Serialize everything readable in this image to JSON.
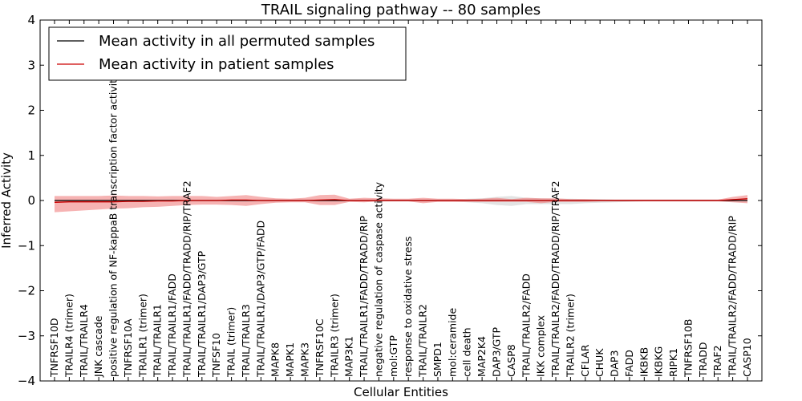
{
  "chart_data": {
    "type": "line",
    "title": "TRAIL signaling pathway -- 80 samples",
    "xlabel": "Cellular Entities",
    "ylabel": "Inferred Activity",
    "ylim": [
      -4,
      4
    ],
    "yticks": [
      "4",
      "3",
      "2",
      "1",
      "0",
      "−1",
      "−2",
      "−3",
      "−4"
    ],
    "legend_location": "top-left",
    "categories": [
      "TNFRSF10D",
      "TRAILR4 (trimer)",
      "TRAIL/TRAILR4",
      "JNK cascade",
      "positive regulation of NF-kappaB transcription factor activity",
      "TNFRSF10A",
      "TRAILR1 (trimer)",
      "TRAIL/TRAILR1",
      "TRAIL/TRAILR1/FADD",
      "TRAIL/TRAILR1/FADD/TRADD/RIP/TRAF2",
      "TRAIL/TRAILR1/DAP3/GTP",
      "TNFSF10",
      "TRAIL (trimer)",
      "TRAIL/TRAILR3",
      "TRAIL/TRAILR1/DAP3/GTP/FADD",
      "MAPK8",
      "MAPK1",
      "MAPK3",
      "TNFRSF10C",
      "TRAILR3 (trimer)",
      "MAP3K1",
      "TRAIL/TRAILR1/FADD/TRADD/RIP",
      "negative regulation of caspase activity",
      "mol:GTP",
      "response to oxidative stress",
      "TRAIL/TRAILR2",
      "SMPD1",
      "mol:ceramide",
      "cell death",
      "MAP2K4",
      "DAP3/GTP",
      "CASP8",
      "TRAIL/TRAILR2/FADD",
      "IKK complex",
      "TRAIL/TRAILR2/FADD/TRADD/RIP/TRAF2",
      "TRAILR2 (trimer)",
      "CFLAR",
      "CHUK",
      "DAP3",
      "FADD",
      "IKBKB",
      "IKBKG",
      "RIPK1",
      "TNFRSF10B",
      "TRADD",
      "TRAF2",
      "TRAIL/TRAILR2/FADD/TRADD/RIP",
      "CASP10"
    ],
    "series": [
      {
        "name": "Mean activity in all permuted samples",
        "color": "#000000",
        "values": [
          0.0,
          0.0,
          0.0,
          0.0,
          0.0,
          0.0,
          0.0,
          0.0,
          0.0,
          0.0,
          0.0,
          0.0,
          0.0,
          0.0,
          0.0,
          0.0,
          0.0,
          0.0,
          0.0,
          0.0,
          0.0,
          0.0,
          0.0,
          0.0,
          0.0,
          0.0,
          0.0,
          0.0,
          0.0,
          0.0,
          0.0,
          0.0,
          0.0,
          0.0,
          0.0,
          0.0,
          0.0,
          0.0,
          0.0,
          0.0,
          0.0,
          0.0,
          0.0,
          0.0,
          0.0,
          0.0,
          0.0,
          0.0
        ],
        "band_upper": [
          0.02,
          0.02,
          0.02,
          0.02,
          0.02,
          0.02,
          0.02,
          0.02,
          0.02,
          0.02,
          0.02,
          0.02,
          0.02,
          0.02,
          0.02,
          0.02,
          0.02,
          0.02,
          0.02,
          0.02,
          0.02,
          0.02,
          0.02,
          0.02,
          0.02,
          0.02,
          0.02,
          0.02,
          0.04,
          0.05,
          0.08,
          0.1,
          0.06,
          0.05,
          0.04,
          0.04,
          0.03,
          0.03,
          0.02,
          0.02,
          0.02,
          0.02,
          0.02,
          0.02,
          0.02,
          0.02,
          0.02,
          0.02
        ],
        "band_lower": [
          -0.02,
          -0.02,
          -0.02,
          -0.02,
          -0.02,
          -0.02,
          -0.02,
          -0.02,
          -0.02,
          -0.02,
          -0.02,
          -0.02,
          -0.02,
          -0.02,
          -0.02,
          -0.02,
          -0.02,
          -0.02,
          -0.02,
          -0.02,
          -0.02,
          -0.02,
          -0.02,
          -0.02,
          -0.02,
          -0.02,
          -0.02,
          -0.02,
          -0.04,
          -0.06,
          -0.1,
          -0.12,
          -0.08,
          -0.08,
          -0.08,
          -0.08,
          -0.06,
          -0.05,
          -0.04,
          -0.03,
          -0.02,
          -0.02,
          -0.02,
          -0.02,
          -0.02,
          -0.02,
          -0.02,
          -0.02
        ]
      },
      {
        "name": "Mean activity in patient samples",
        "color": "#cc0000",
        "values": [
          -0.04,
          -0.03,
          -0.03,
          -0.03,
          -0.03,
          -0.02,
          -0.02,
          -0.01,
          -0.01,
          0.0,
          0.0,
          0.0,
          0.01,
          0.01,
          0.0,
          0.0,
          0.0,
          0.0,
          0.01,
          0.02,
          0.0,
          0.0,
          0.0,
          0.0,
          0.0,
          0.0,
          0.0,
          0.0,
          0.0,
          0.0,
          0.0,
          0.0,
          0.0,
          0.0,
          0.0,
          0.0,
          0.0,
          0.0,
          0.0,
          0.0,
          0.0,
          0.0,
          0.0,
          0.0,
          0.0,
          0.0,
          0.02,
          0.04
        ],
        "band_upper": [
          0.1,
          0.1,
          0.1,
          0.1,
          0.11,
          0.1,
          0.1,
          0.09,
          0.1,
          0.1,
          0.1,
          0.08,
          0.1,
          0.12,
          0.08,
          0.05,
          0.04,
          0.06,
          0.12,
          0.13,
          0.04,
          0.06,
          0.05,
          0.04,
          0.04,
          0.06,
          0.04,
          0.04,
          0.03,
          0.04,
          0.06,
          0.03,
          0.06,
          0.05,
          0.05,
          0.03,
          0.03,
          0.02,
          0.02,
          0.02,
          0.02,
          0.02,
          0.02,
          0.02,
          0.02,
          0.02,
          0.08,
          0.12
        ],
        "band_lower": [
          -0.26,
          -0.24,
          -0.22,
          -0.2,
          -0.18,
          -0.17,
          -0.15,
          -0.14,
          -0.12,
          -0.1,
          -0.09,
          -0.09,
          -0.1,
          -0.12,
          -0.08,
          -0.05,
          -0.04,
          -0.04,
          -0.1,
          -0.1,
          -0.03,
          -0.04,
          -0.02,
          -0.02,
          -0.02,
          -0.06,
          -0.03,
          -0.03,
          -0.03,
          -0.03,
          -0.03,
          -0.03,
          -0.03,
          -0.06,
          -0.03,
          -0.03,
          -0.03,
          -0.02,
          -0.02,
          -0.02,
          -0.02,
          -0.02,
          -0.02,
          -0.02,
          -0.02,
          -0.02,
          -0.04,
          -0.06
        ]
      }
    ]
  }
}
